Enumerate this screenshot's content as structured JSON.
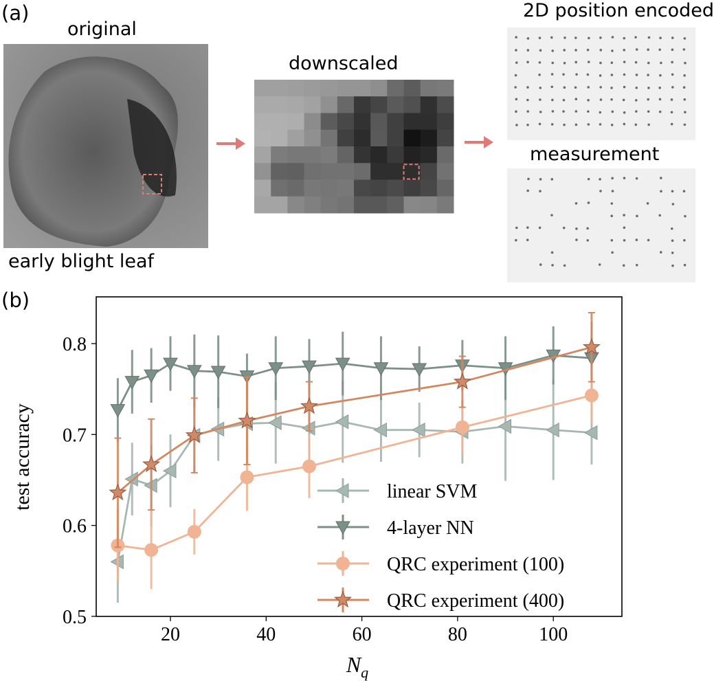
{
  "panel_a": {
    "label": "(a)",
    "original_title": "original",
    "original_caption": "early blight leaf",
    "downscaled_title": "downscaled",
    "encoded_title": "2D position encoded",
    "measurement_title": "measurement",
    "highlight_color": "#e07a78"
  },
  "panel_b": {
    "label": "(b)"
  },
  "chart_data": {
    "type": "line",
    "xlabel": "N_q",
    "ylabel": "test accuracy",
    "xlim": [
      5,
      113
    ],
    "ylim": [
      0.5,
      0.85
    ],
    "xticks": [
      20,
      40,
      60,
      80,
      100
    ],
    "yticks": [
      0.5,
      0.6,
      0.7,
      0.8
    ],
    "xtick_labels": [
      "20",
      "40",
      "60",
      "80",
      "100"
    ],
    "ytick_labels": [
      "0.5",
      "0.6",
      "0.7",
      "0.8"
    ],
    "grid": false,
    "legend_position": "bottom-right",
    "series": [
      {
        "name": "linear SVM",
        "marker": "triangle-left",
        "color": "#a7b8b2",
        "x": [
          9,
          12,
          16,
          20,
          25,
          30,
          36,
          42,
          49,
          56,
          64,
          72,
          81,
          90,
          100,
          108
        ],
        "y": [
          0.56,
          0.651,
          0.644,
          0.66,
          0.699,
          0.706,
          0.712,
          0.713,
          0.707,
          0.714,
          0.705,
          0.705,
          0.703,
          0.709,
          0.705,
          0.702
        ],
        "err": [
          0.045,
          0.04,
          0.045,
          0.04,
          0.04,
          0.035,
          0.045,
          0.045,
          0.04,
          0.045,
          0.035,
          0.03,
          0.035,
          0.06,
          0.055,
          0.035
        ]
      },
      {
        "name": "4-layer NN",
        "marker": "triangle-down",
        "color": "#7c9088",
        "x": [
          9,
          12,
          16,
          20,
          25,
          30,
          36,
          42,
          49,
          56,
          64,
          72,
          81,
          90,
          100,
          108
        ],
        "y": [
          0.727,
          0.758,
          0.765,
          0.778,
          0.77,
          0.769,
          0.764,
          0.773,
          0.775,
          0.778,
          0.773,
          0.772,
          0.776,
          0.773,
          0.787,
          0.784
        ],
        "err": [
          0.035,
          0.035,
          0.03,
          0.03,
          0.04,
          0.04,
          0.025,
          0.035,
          0.03,
          0.035,
          0.035,
          0.025,
          0.028,
          0.035,
          0.032,
          0.04
        ]
      },
      {
        "name": "QRC experiment (100)",
        "marker": "circle",
        "color": "#f0b494",
        "x": [
          9,
          16,
          25,
          36,
          49,
          81,
          108
        ],
        "y": [
          0.578,
          0.573,
          0.593,
          0.653,
          0.665,
          0.708,
          0.743
        ],
        "err": [
          0.04,
          0.043,
          0.025,
          0.037,
          0.035,
          0.03,
          0.03
        ]
      },
      {
        "name": "QRC experiment (400)",
        "marker": "star",
        "color": "#d4875f",
        "x": [
          9,
          16,
          25,
          36,
          49,
          81,
          108
        ],
        "y": [
          0.636,
          0.667,
          0.699,
          0.715,
          0.731,
          0.758,
          0.796
        ],
        "err": [
          0.06,
          0.05,
          0.041,
          0.048,
          0.027,
          0.028,
          0.038
        ]
      }
    ]
  }
}
